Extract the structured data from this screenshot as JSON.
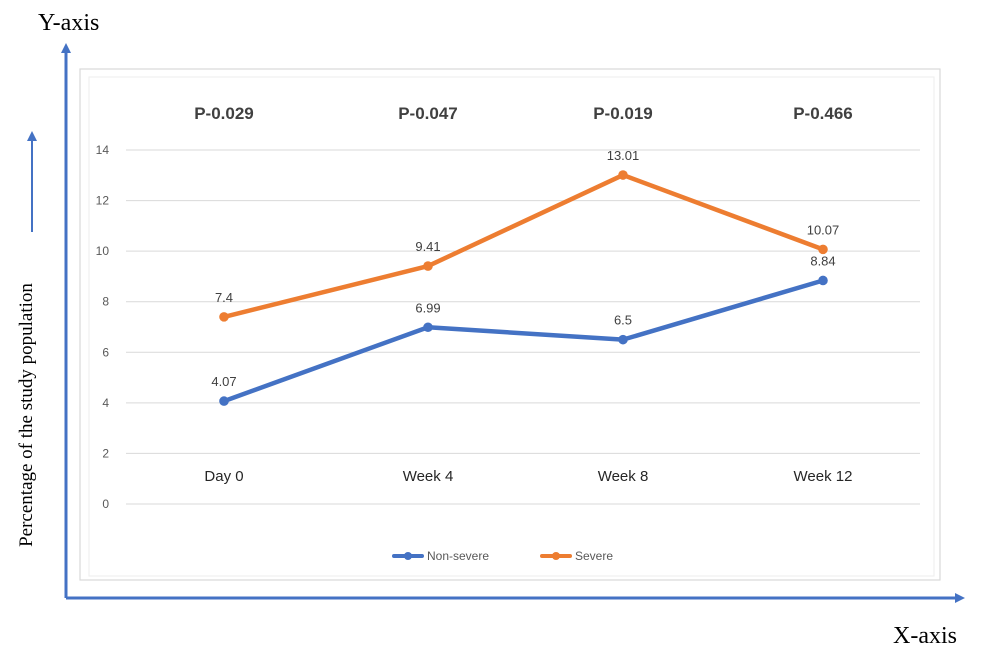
{
  "outer_axes": {
    "y_title": "Y-axis",
    "x_title": "X-axis",
    "y_description": "Percentage of the study population",
    "axis_color": "#4472C4"
  },
  "chart_data": {
    "type": "line",
    "categories": [
      "Day 0",
      "Week 4",
      "Week 8",
      "Week 12"
    ],
    "p_values": [
      "P-0.029",
      "P-0.047",
      "P-0.019",
      "P-0.466"
    ],
    "series": [
      {
        "name": "Non-severe",
        "color": "#4472C4",
        "values": [
          4.07,
          6.99,
          6.5,
          8.84
        ],
        "labels": [
          "4.07",
          "6.99",
          "6.5",
          "8.84"
        ]
      },
      {
        "name": "Severe",
        "color": "#ED7D31",
        "values": [
          7.4,
          9.41,
          13.01,
          10.07
        ],
        "labels": [
          "7.4",
          "9.41",
          "13.01",
          "10.07"
        ]
      }
    ],
    "ylim": [
      0,
      14
    ],
    "yticks": [
      "0",
      "2",
      "4",
      "6",
      "8",
      "10",
      "12",
      "14"
    ],
    "grid": true,
    "legend": "bottom"
  }
}
